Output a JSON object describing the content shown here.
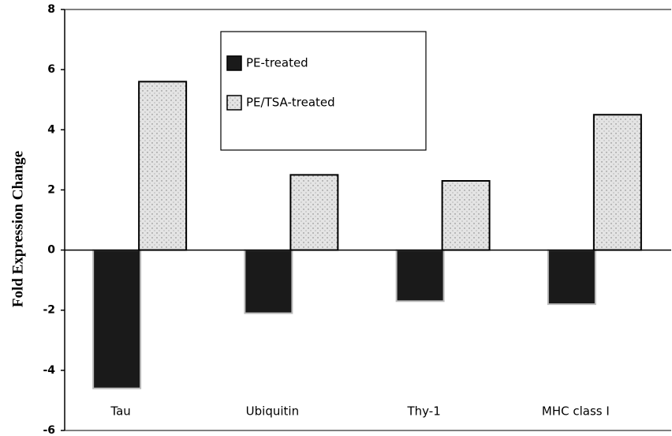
{
  "chart_data": {
    "type": "bar",
    "y_label": "Fold Expression Change",
    "categories": [
      "Tau",
      "Ubiquitin",
      "Thy-1",
      "MHC class I"
    ],
    "series": [
      {
        "name": "PE-treated",
        "color": "#1a1a1a",
        "values": [
          -4.6,
          -2.1,
          -1.7,
          -1.8
        ]
      },
      {
        "name": "PE/TSA-treated",
        "color": "#dcdcdc",
        "values": [
          5.6,
          2.5,
          2.3,
          4.5
        ]
      }
    ],
    "ylim": [
      -6,
      8
    ],
    "yticks": [
      -6,
      -4,
      -2,
      0,
      2,
      4,
      6,
      8
    ],
    "grid": false
  }
}
